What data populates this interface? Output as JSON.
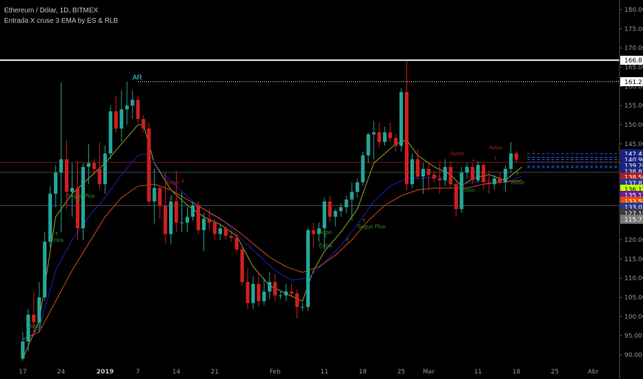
{
  "header": {
    "title": "Ethereum / Dólar, 1D, BITMEX",
    "indicator": "Entrada X cruse 3 EMA by ES & RLB"
  },
  "chart_data": {
    "type": "candlestick",
    "ylim": [
      88.5,
      183
    ],
    "y_ticks": [
      "180.00",
      "175.00",
      "170.00",
      "165.00",
      "160.00",
      "155.00",
      "150.00",
      "145.00",
      "140.00",
      "135.00",
      "130.00",
      "125.00",
      "120.00",
      "115.00",
      "110.00",
      "105.00",
      "100.00",
      "95.00",
      "90.00"
    ],
    "x_ticks": [
      {
        "label": "17",
        "i": 0
      },
      {
        "label": "24",
        "i": 7
      },
      {
        "label": "2019",
        "i": 15
      },
      {
        "label": "7",
        "i": 21
      },
      {
        "label": "14",
        "i": 28
      },
      {
        "label": "21",
        "i": 35
      },
      {
        "label": "Feb",
        "i": 46
      },
      {
        "label": "11",
        "i": 55
      },
      {
        "label": "18",
        "i": 62
      },
      {
        "label": "25",
        "i": 69
      },
      {
        "label": "Mar",
        "i": 74
      },
      {
        "label": "11",
        "i": 83
      },
      {
        "label": "18",
        "i": 90
      },
      {
        "label": "25",
        "i": 97
      },
      {
        "label": "Abr",
        "i": 104
      }
    ],
    "colors": {
      "up": "#26a69a",
      "down": "#d11f1f",
      "ema_fast": "#8c9e22",
      "ema_mid": "#1e1ea8",
      "ema_slow": "#c7471c"
    },
    "candles": [
      {
        "o": 89.0,
        "h": 96.0,
        "l": 88.5,
        "c": 93.5
      },
      {
        "o": 93.5,
        "h": 102.0,
        "l": 91.0,
        "c": 100.5
      },
      {
        "o": 100.5,
        "h": 106.5,
        "l": 95.0,
        "c": 98.5
      },
      {
        "o": 98.5,
        "h": 109.0,
        "l": 96.0,
        "c": 105.0
      },
      {
        "o": 105.0,
        "h": 122.0,
        "l": 104.0,
        "c": 119.5
      },
      {
        "o": 119.5,
        "h": 134.0,
        "l": 118.0,
        "c": 132.0
      },
      {
        "o": 132.0,
        "h": 139.5,
        "l": 128.5,
        "c": 137.5
      },
      {
        "o": 137.5,
        "h": 161.0,
        "l": 122.0,
        "c": 141.0
      },
      {
        "o": 141.0,
        "h": 146.0,
        "l": 128.0,
        "c": 132.5
      },
      {
        "o": 132.5,
        "h": 140.0,
        "l": 126.0,
        "c": 133.5
      },
      {
        "o": 133.5,
        "h": 140.5,
        "l": 120.0,
        "c": 123.0
      },
      {
        "o": 123.0,
        "h": 140.0,
        "l": 120.0,
        "c": 139.0
      },
      {
        "o": 139.0,
        "h": 145.0,
        "l": 134.5,
        "c": 140.0
      },
      {
        "o": 140.0,
        "h": 141.0,
        "l": 137.0,
        "c": 138.5
      },
      {
        "o": 138.5,
        "h": 145.5,
        "l": 133.0,
        "c": 134.5
      },
      {
        "o": 134.5,
        "h": 144.5,
        "l": 132.0,
        "c": 142.5
      },
      {
        "o": 142.5,
        "h": 155.0,
        "l": 141.0,
        "c": 153.5
      },
      {
        "o": 153.5,
        "h": 157.5,
        "l": 148.0,
        "c": 149.0
      },
      {
        "o": 149.0,
        "h": 159.0,
        "l": 145.5,
        "c": 154.0
      },
      {
        "o": 154.0,
        "h": 161.2,
        "l": 150.0,
        "c": 155.0
      },
      {
        "o": 155.0,
        "h": 159.0,
        "l": 151.5,
        "c": 156.5
      },
      {
        "o": 156.5,
        "h": 157.5,
        "l": 150.5,
        "c": 151.5
      },
      {
        "o": 151.5,
        "h": 152.5,
        "l": 148.0,
        "c": 149.0
      },
      {
        "o": 149.0,
        "h": 150.5,
        "l": 129.0,
        "c": 130.0
      },
      {
        "o": 130.0,
        "h": 138.5,
        "l": 124.0,
        "c": 133.5
      },
      {
        "o": 133.5,
        "h": 134.0,
        "l": 125.5,
        "c": 129.0
      },
      {
        "o": 129.0,
        "h": 137.5,
        "l": 119.0,
        "c": 121.5
      },
      {
        "o": 121.5,
        "h": 131.5,
        "l": 119.0,
        "c": 130.0
      },
      {
        "o": 130.0,
        "h": 138.0,
        "l": 122.0,
        "c": 124.5
      },
      {
        "o": 124.5,
        "h": 132.5,
        "l": 122.0,
        "c": 124.5
      },
      {
        "o": 124.5,
        "h": 128.5,
        "l": 122.0,
        "c": 126.0
      },
      {
        "o": 126.0,
        "h": 130.0,
        "l": 125.0,
        "c": 129.0
      },
      {
        "o": 129.0,
        "h": 130.0,
        "l": 121.5,
        "c": 122.5
      },
      {
        "o": 122.5,
        "h": 127.0,
        "l": 117.0,
        "c": 125.5
      },
      {
        "o": 125.5,
        "h": 128.0,
        "l": 122.5,
        "c": 124.5
      },
      {
        "o": 124.5,
        "h": 125.5,
        "l": 120.0,
        "c": 121.5
      },
      {
        "o": 121.5,
        "h": 124.0,
        "l": 120.0,
        "c": 123.0
      },
      {
        "o": 123.0,
        "h": 123.5,
        "l": 120.0,
        "c": 121.0
      },
      {
        "o": 121.0,
        "h": 122.5,
        "l": 119.5,
        "c": 120.5
      },
      {
        "o": 120.5,
        "h": 121.5,
        "l": 117.0,
        "c": 117.5
      },
      {
        "o": 117.5,
        "h": 118.5,
        "l": 108.0,
        "c": 109.0
      },
      {
        "o": 109.0,
        "h": 112.5,
        "l": 102.0,
        "c": 103.5
      },
      {
        "o": 103.5,
        "h": 110.5,
        "l": 102.0,
        "c": 108.5
      },
      {
        "o": 108.5,
        "h": 111.5,
        "l": 102.5,
        "c": 104.0
      },
      {
        "o": 104.0,
        "h": 110.0,
        "l": 103.0,
        "c": 106.5
      },
      {
        "o": 106.5,
        "h": 111.5,
        "l": 104.5,
        "c": 109.0
      },
      {
        "o": 109.0,
        "h": 111.0,
        "l": 104.0,
        "c": 105.5
      },
      {
        "o": 105.5,
        "h": 106.5,
        "l": 104.5,
        "c": 105.5
      },
      {
        "o": 105.5,
        "h": 108.5,
        "l": 104.0,
        "c": 106.5
      },
      {
        "o": 106.5,
        "h": 108.5,
        "l": 105.0,
        "c": 106.0
      },
      {
        "o": 106.0,
        "h": 107.0,
        "l": 99.5,
        "c": 102.5
      },
      {
        "o": 102.5,
        "h": 103.5,
        "l": 101.5,
        "c": 102.5
      },
      {
        "o": 102.5,
        "h": 123.0,
        "l": 101.5,
        "c": 122.5
      },
      {
        "o": 122.5,
        "h": 124.5,
        "l": 118.0,
        "c": 121.5
      },
      {
        "o": 121.5,
        "h": 124.5,
        "l": 119.5,
        "c": 123.0
      },
      {
        "o": 123.0,
        "h": 131.0,
        "l": 117.5,
        "c": 130.0
      },
      {
        "o": 130.0,
        "h": 131.5,
        "l": 124.5,
        "c": 126.0
      },
      {
        "o": 126.0,
        "h": 128.0,
        "l": 123.5,
        "c": 127.5
      },
      {
        "o": 127.5,
        "h": 129.5,
        "l": 126.0,
        "c": 128.5
      },
      {
        "o": 128.5,
        "h": 131.5,
        "l": 127.0,
        "c": 130.5
      },
      {
        "o": 130.5,
        "h": 135.0,
        "l": 125.0,
        "c": 132.5
      },
      {
        "o": 132.5,
        "h": 136.0,
        "l": 131.0,
        "c": 135.0
      },
      {
        "o": 135.0,
        "h": 143.0,
        "l": 134.0,
        "c": 142.0
      },
      {
        "o": 142.0,
        "h": 148.0,
        "l": 140.0,
        "c": 147.5
      },
      {
        "o": 147.5,
        "h": 151.0,
        "l": 141.0,
        "c": 148.0
      },
      {
        "o": 148.0,
        "h": 150.5,
        "l": 144.0,
        "c": 145.5
      },
      {
        "o": 145.5,
        "h": 149.5,
        "l": 144.5,
        "c": 148.0
      },
      {
        "o": 148.0,
        "h": 150.5,
        "l": 145.5,
        "c": 146.5
      },
      {
        "o": 146.5,
        "h": 147.5,
        "l": 143.0,
        "c": 144.5
      },
      {
        "o": 144.5,
        "h": 159.5,
        "l": 143.0,
        "c": 158.5
      },
      {
        "o": 158.5,
        "h": 166.5,
        "l": 133.0,
        "c": 134.5
      },
      {
        "o": 134.5,
        "h": 142.5,
        "l": 133.5,
        "c": 141.0
      },
      {
        "o": 141.0,
        "h": 143.5,
        "l": 136.0,
        "c": 136.5
      },
      {
        "o": 136.5,
        "h": 140.0,
        "l": 132.0,
        "c": 138.5
      },
      {
        "o": 138.5,
        "h": 140.0,
        "l": 133.0,
        "c": 137.0
      },
      {
        "o": 137.0,
        "h": 138.0,
        "l": 135.0,
        "c": 136.0
      },
      {
        "o": 136.0,
        "h": 140.0,
        "l": 132.0,
        "c": 135.5
      },
      {
        "o": 135.5,
        "h": 141.0,
        "l": 134.0,
        "c": 139.0
      },
      {
        "o": 139.0,
        "h": 140.5,
        "l": 133.5,
        "c": 134.5
      },
      {
        "o": 134.5,
        "h": 135.0,
        "l": 126.0,
        "c": 128.0
      },
      {
        "o": 128.0,
        "h": 139.0,
        "l": 127.0,
        "c": 137.5
      },
      {
        "o": 137.5,
        "h": 140.0,
        "l": 136.0,
        "c": 139.0
      },
      {
        "o": 139.0,
        "h": 140.0,
        "l": 134.5,
        "c": 135.5
      },
      {
        "o": 135.5,
        "h": 140.5,
        "l": 135.0,
        "c": 139.5
      },
      {
        "o": 139.5,
        "h": 140.0,
        "l": 133.0,
        "c": 135.0
      },
      {
        "o": 135.0,
        "h": 138.0,
        "l": 132.0,
        "c": 134.5
      },
      {
        "o": 134.5,
        "h": 137.0,
        "l": 133.0,
        "c": 136.0
      },
      {
        "o": 136.0,
        "h": 137.5,
        "l": 134.5,
        "c": 135.0
      },
      {
        "o": 135.0,
        "h": 139.5,
        "l": 132.5,
        "c": 138.5
      },
      {
        "o": 138.5,
        "h": 145.5,
        "l": 137.5,
        "c": 142.5
      },
      {
        "o": 142.5,
        "h": 143.0,
        "l": 140.0,
        "c": 140.9
      }
    ],
    "ema_fast": [
      [
        0,
        89
      ],
      [
        3,
        99
      ],
      [
        6,
        126
      ],
      [
        9,
        132
      ],
      [
        12,
        136
      ],
      [
        15,
        140
      ],
      [
        18,
        145
      ],
      [
        21,
        150
      ],
      [
        22,
        150
      ],
      [
        24,
        140
      ],
      [
        27,
        133
      ],
      [
        30,
        129
      ],
      [
        33,
        126
      ],
      [
        36,
        124
      ],
      [
        39,
        121
      ],
      [
        42,
        113
      ],
      [
        45,
        108
      ],
      [
        48,
        106
      ],
      [
        51,
        104
      ],
      [
        53,
        112
      ],
      [
        55,
        117
      ],
      [
        58,
        122
      ],
      [
        61,
        128
      ],
      [
        64,
        140
      ],
      [
        68,
        145
      ],
      [
        70,
        146
      ],
      [
        72,
        142
      ],
      [
        75,
        139
      ],
      [
        78,
        137
      ],
      [
        80,
        134
      ],
      [
        82,
        136
      ],
      [
        85,
        137
      ],
      [
        88,
        135.5
      ],
      [
        91,
        139
      ]
    ],
    "ema_mid": [
      [
        0,
        93
      ],
      [
        3,
        97
      ],
      [
        6,
        112
      ],
      [
        9,
        120
      ],
      [
        12,
        126
      ],
      [
        15,
        131
      ],
      [
        18,
        137
      ],
      [
        21,
        142
      ],
      [
        23,
        142.5
      ],
      [
        25,
        138
      ],
      [
        28,
        134
      ],
      [
        31,
        130
      ],
      [
        34,
        127
      ],
      [
        37,
        124.5
      ],
      [
        40,
        120
      ],
      [
        43,
        116
      ],
      [
        46,
        112
      ],
      [
        49,
        109.5
      ],
      [
        52,
        110
      ],
      [
        55,
        114
      ],
      [
        58,
        118.5
      ],
      [
        61,
        124
      ],
      [
        64,
        130
      ],
      [
        67,
        134
      ],
      [
        70,
        136
      ],
      [
        73,
        136
      ],
      [
        76,
        136.5
      ],
      [
        79,
        134
      ],
      [
        82,
        135
      ],
      [
        85,
        135.5
      ],
      [
        88,
        135
      ],
      [
        91,
        136.5
      ]
    ],
    "ema_slow": [
      [
        0,
        94
      ],
      [
        3,
        96
      ],
      [
        6,
        104
      ],
      [
        9,
        112
      ],
      [
        12,
        119
      ],
      [
        15,
        126
      ],
      [
        18,
        131
      ],
      [
        21,
        134
      ],
      [
        24,
        134.5
      ],
      [
        27,
        133
      ],
      [
        30,
        130.5
      ],
      [
        33,
        128
      ],
      [
        36,
        125.5
      ],
      [
        39,
        122.5
      ],
      [
        42,
        119
      ],
      [
        45,
        115.5
      ],
      [
        48,
        113
      ],
      [
        51,
        111.5
      ],
      [
        54,
        113
      ],
      [
        57,
        116
      ],
      [
        60,
        120
      ],
      [
        63,
        125
      ],
      [
        66,
        129
      ],
      [
        69,
        131.5
      ],
      [
        72,
        133
      ],
      [
        75,
        133.5
      ],
      [
        78,
        133.5
      ],
      [
        81,
        133.5
      ],
      [
        84,
        134.5
      ],
      [
        87,
        135
      ],
      [
        91,
        135.5
      ]
    ],
    "annotations": [
      {
        "text": "AR",
        "i": 21,
        "y": 161.8,
        "color": "#4dd0e1",
        "size": 10
      },
      {
        "text": "Aviso",
        "i": 2,
        "y": 97.0,
        "color": "#2e8b2e",
        "size": 8
      },
      {
        "text": "Entra",
        "i": 6,
        "y": 119.5,
        "color": "#2e8b2e",
        "size": 8
      },
      {
        "text": "Seguir Plus",
        "i": 9,
        "y": 131.0,
        "color": "#2e8b2e",
        "size": 8
      },
      {
        "text": "Aviso",
        "i": 27,
        "y": 134.5,
        "color": "#b71c1c",
        "size": 8
      },
      {
        "text": "Entra",
        "i": 55,
        "y": 118.0,
        "color": "#2e8b2e",
        "size": 8
      },
      {
        "text": "Seguir Plus",
        "i": 62,
        "y": 123.0,
        "color": "#2e8b2e",
        "size": 8
      },
      {
        "text": "Aviso",
        "i": 55,
        "y": 121.5,
        "color": "#2e8b2e",
        "size": 8
      },
      {
        "text": "Aviso",
        "i": 79,
        "y": 142.0,
        "color": "#b71c1c",
        "size": 8
      },
      {
        "text": "Aviso",
        "i": 86,
        "y": 143.5,
        "color": "#b71c1c",
        "size": 8
      },
      {
        "text": "Aviso",
        "i": 81,
        "y": 132.5,
        "color": "#2e8b2e",
        "size": 8
      },
      {
        "text": "Aviso",
        "i": 90,
        "y": 134.5,
        "color": "#2e8b2e",
        "size": 8
      }
    ],
    "arrows": [
      {
        "i": 3,
        "y": 97.5,
        "dir": "up"
      },
      {
        "i": 6,
        "y": 121.0,
        "dir": "up"
      },
      {
        "i": 10,
        "y": 129.5,
        "dir": "up"
      },
      {
        "i": 27,
        "y": 130.5,
        "dir": "down"
      },
      {
        "i": 29,
        "y": 135.0,
        "dir": "down"
      },
      {
        "i": 55,
        "y": 120.5,
        "dir": "up"
      },
      {
        "i": 59,
        "y": 119.5,
        "dir": "up"
      },
      {
        "i": 62,
        "y": 124.5,
        "dir": "up"
      },
      {
        "i": 80,
        "y": 133.0,
        "dir": "up"
      },
      {
        "i": 82,
        "y": 140.5,
        "dir": "down"
      },
      {
        "i": 86,
        "y": 141.0,
        "dir": "down"
      },
      {
        "i": 88,
        "y": 136.0,
        "dir": "down"
      },
      {
        "i": 90,
        "y": 136.5,
        "dir": "up"
      },
      {
        "i": 93,
        "y": 142.3,
        "dir": "down"
      }
    ],
    "hlines": [
      {
        "y": 166.81,
        "color": "#ffffff",
        "width": 2,
        "dash": ""
      },
      {
        "y": 161.23,
        "color": "#ffffff",
        "width": 1,
        "dash": "1,2",
        "from": 21
      },
      {
        "y": 140.2,
        "color": "#7a1a1a",
        "width": 1,
        "dash": ""
      },
      {
        "y": 137.6,
        "color": "#4a4a4a",
        "width": 1,
        "dash": ""
      },
      {
        "y": 128.9,
        "color": "#4a4a4a",
        "width": 1,
        "dash": ""
      },
      {
        "y": 142.45,
        "color": "#2962ff",
        "width": 1,
        "dash": "4,3",
        "from": 92
      },
      {
        "y": 141.5,
        "color": "#2962ff",
        "width": 1,
        "dash": "4,3",
        "from": 92
      },
      {
        "y": 140.9,
        "color": "#2962ff",
        "width": 1,
        "dash": "4,3",
        "from": 92
      },
      {
        "y": 140.25,
        "color": "#2962ff",
        "width": 1,
        "dash": "4,3",
        "from": 92
      },
      {
        "y": 139.2,
        "color": "#2962ff",
        "width": 1,
        "dash": "4,3",
        "from": 92
      },
      {
        "y": 138.85,
        "color": "#2962ff",
        "width": 1,
        "dash": "4,3",
        "from": 92
      }
    ],
    "price_labels": [
      {
        "text": "166.81",
        "y": 166.81,
        "bg": "#ffffff",
        "fg": "#000000"
      },
      {
        "text": "161.23",
        "y": 161.23,
        "bg": "#ffffff",
        "fg": "#000000"
      },
      {
        "text": "142.45",
        "y": 142.45,
        "bg": "#1a237e",
        "fg": "#ffffff"
      },
      {
        "text": "140.90",
        "y": 140.9,
        "bg": "#1a237e",
        "fg": "#ffffff"
      },
      {
        "text": "139.20",
        "y": 139.35,
        "bg": "#1a237e",
        "fg": "#ffffff"
      },
      {
        "text": "138.85",
        "y": 137.8,
        "bg": "#1a237e",
        "fg": "#ffffff"
      },
      {
        "text": "138.50",
        "y": 136.3,
        "bg": "#b71c1c",
        "fg": "#ffffff"
      },
      {
        "text": "137.85",
        "y": 134.75,
        "bg": "#283593",
        "fg": "#ffffff"
      },
      {
        "text": "136.12",
        "y": 133.2,
        "bg": "#c6ff00",
        "fg": "#000000"
      },
      {
        "text": "135.13",
        "y": 131.6,
        "bg": "#6a1b9a",
        "fg": "#ffffff"
      },
      {
        "text": "133.58",
        "y": 130.05,
        "bg": "#e65100",
        "fg": "#ffffff"
      },
      {
        "text": "133.05",
        "y": 128.5,
        "bg": "#283593",
        "fg": "#ffffff"
      },
      {
        "text": "127.15",
        "y": 126.9,
        "bg": "#3a3a3a",
        "fg": "#ffffff"
      },
      {
        "text": "115.71",
        "y": 125.35,
        "bg": "#7a7a7a",
        "fg": "#ffffff"
      }
    ]
  }
}
